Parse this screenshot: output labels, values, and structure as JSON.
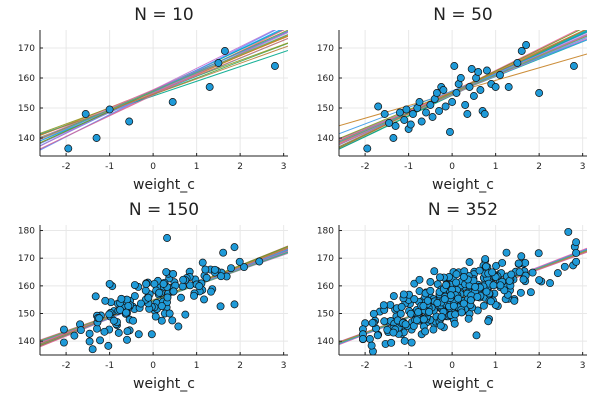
{
  "chart_data": [
    {
      "type": "scatter",
      "title": "N = 10",
      "xlabel": "weight_c",
      "ylabel": "",
      "xlim": [
        -2.6,
        3.1
      ],
      "ylim": [
        134,
        176
      ],
      "xticks": [
        -2,
        -1,
        0,
        1,
        2,
        3
      ],
      "yticks": [
        140,
        150,
        160,
        170
      ],
      "grid": true,
      "points": {
        "x": [
          -1.95,
          -1.55,
          -1.3,
          -1.0,
          -0.55,
          0.45,
          1.3,
          1.5,
          1.65,
          2.8
        ],
        "y": [
          136.5,
          148.0,
          140.0,
          149.5,
          145.5,
          152.0,
          157.0,
          165.0,
          169.0,
          164.0
        ]
      },
      "lines": [
        {
          "a": 155.6,
          "b": 7.0
        },
        {
          "a": 155.4,
          "b": 6.0
        },
        {
          "a": 154.5,
          "b": 5.5
        },
        {
          "a": 156.0,
          "b": 7.2
        },
        {
          "a": 154.8,
          "b": 6.3
        },
        {
          "a": 155.8,
          "b": 6.8
        },
        {
          "a": 154.7,
          "b": 7.1
        },
        {
          "a": 155.9,
          "b": 5.8
        },
        {
          "a": 154.0,
          "b": 4.9
        },
        {
          "a": 155.3,
          "b": 5.3
        },
        {
          "a": 154.6,
          "b": 6.0
        },
        {
          "a": 155.0,
          "b": 6.5
        },
        {
          "a": 155.2,
          "b": 7.4
        },
        {
          "a": 154.9,
          "b": 5.9
        },
        {
          "a": 156.1,
          "b": 6.2
        },
        {
          "a": 155.5,
          "b": 6.6
        },
        {
          "a": 154.3,
          "b": 6.9
        },
        {
          "a": 155.7,
          "b": 6.4
        },
        {
          "a": 154.5,
          "b": 5.2
        },
        {
          "a": 155.6,
          "b": 6.1
        }
      ]
    },
    {
      "type": "scatter",
      "title": "N = 50",
      "xlabel": "weight_c",
      "ylabel": "",
      "xlim": [
        -2.6,
        3.1
      ],
      "ylim": [
        134,
        176
      ],
      "xticks": [
        -2,
        -1,
        0,
        1,
        2,
        3
      ],
      "yticks": [
        140,
        150,
        160,
        170
      ],
      "grid": true,
      "points": {
        "x": [
          -1.95,
          -1.7,
          -1.55,
          -1.45,
          -1.35,
          -1.3,
          -1.2,
          -1.1,
          -1.05,
          -1.0,
          -0.95,
          -0.9,
          -0.8,
          -0.75,
          -0.7,
          -0.6,
          -0.5,
          -0.45,
          -0.4,
          -0.35,
          -0.3,
          -0.25,
          -0.2,
          -0.15,
          -0.05,
          0.0,
          0.05,
          0.1,
          0.15,
          0.2,
          0.3,
          0.35,
          0.4,
          0.45,
          0.5,
          0.55,
          0.6,
          0.65,
          0.7,
          0.75,
          0.8,
          0.9,
          1.0,
          1.1,
          1.3,
          1.5,
          1.6,
          1.7,
          2.0,
          2.8
        ],
        "y": [
          136.5,
          150.5,
          148.0,
          145.0,
          140.0,
          144.0,
          148.5,
          146.0,
          149.5,
          143.0,
          144.5,
          148.0,
          150.0,
          152.0,
          145.5,
          148.5,
          151.0,
          147.0,
          153.0,
          155.0,
          149.0,
          157.0,
          156.0,
          150.5,
          142.0,
          152.0,
          164.0,
          155.0,
          158.0,
          160.0,
          151.0,
          148.0,
          157.0,
          163.0,
          154.0,
          160.0,
          162.0,
          156.0,
          149.0,
          148.0,
          162.5,
          158.0,
          157.0,
          161.0,
          157.0,
          165.0,
          169.0,
          171.0,
          155.0,
          164.0
        ]
      },
      "lines": [
        {
          "a": 154.8,
          "b": 6.8
        },
        {
          "a": 155.2,
          "b": 6.2
        },
        {
          "a": 154.5,
          "b": 7.0
        },
        {
          "a": 155.0,
          "b": 6.5
        },
        {
          "a": 155.5,
          "b": 6.4
        },
        {
          "a": 154.7,
          "b": 5.8
        },
        {
          "a": 155.3,
          "b": 7.2
        },
        {
          "a": 155.0,
          "b": 4.2
        },
        {
          "a": 154.2,
          "b": 6.9
        },
        {
          "a": 155.4,
          "b": 6.0
        },
        {
          "a": 154.9,
          "b": 6.6
        },
        {
          "a": 155.1,
          "b": 6.3
        },
        {
          "a": 154.6,
          "b": 6.1
        },
        {
          "a": 155.6,
          "b": 6.7
        },
        {
          "a": 154.8,
          "b": 5.9
        },
        {
          "a": 155.2,
          "b": 7.1
        },
        {
          "a": 154.4,
          "b": 6.4
        },
        {
          "a": 155.7,
          "b": 5.5
        },
        {
          "a": 155.0,
          "b": 6.9
        },
        {
          "a": 154.7,
          "b": 6.2
        }
      ]
    },
    {
      "type": "scatter",
      "title": "N = 150",
      "xlabel": "weight_c",
      "ylabel": "",
      "xlim": [
        -2.6,
        3.1
      ],
      "ylim": [
        135,
        182
      ],
      "xticks": [
        -2,
        -1,
        0,
        1,
        2,
        3
      ],
      "yticks": [
        140,
        150,
        160,
        170,
        180
      ],
      "grid": true,
      "scatter_seed": 150,
      "scatter_count": 150,
      "lines": [
        {
          "a": 154.6,
          "b": 6.0
        },
        {
          "a": 154.8,
          "b": 5.8
        },
        {
          "a": 154.5,
          "b": 6.3
        },
        {
          "a": 154.7,
          "b": 5.5
        },
        {
          "a": 154.9,
          "b": 6.1
        },
        {
          "a": 154.4,
          "b": 5.9
        },
        {
          "a": 154.6,
          "b": 6.4
        },
        {
          "a": 154.8,
          "b": 5.6
        },
        {
          "a": 154.5,
          "b": 6.0
        },
        {
          "a": 154.7,
          "b": 6.2
        },
        {
          "a": 154.6,
          "b": 5.7
        },
        {
          "a": 154.9,
          "b": 6.0
        },
        {
          "a": 154.3,
          "b": 6.1
        },
        {
          "a": 154.7,
          "b": 5.9
        },
        {
          "a": 154.5,
          "b": 6.2
        },
        {
          "a": 154.8,
          "b": 6.3
        },
        {
          "a": 154.6,
          "b": 5.8
        },
        {
          "a": 154.4,
          "b": 6.0
        },
        {
          "a": 154.7,
          "b": 6.1
        },
        {
          "a": 154.6,
          "b": 5.6
        }
      ]
    },
    {
      "type": "scatter",
      "title": "N = 352",
      "xlabel": "weight_c",
      "ylabel": "",
      "xlim": [
        -2.6,
        3.1
      ],
      "ylim": [
        135,
        182
      ],
      "xticks": [
        -2,
        -1,
        0,
        1,
        2,
        3
      ],
      "yticks": [
        140,
        150,
        160,
        170,
        180
      ],
      "grid": true,
      "scatter_seed": 352,
      "scatter_count": 352,
      "lines": [
        {
          "a": 154.6,
          "b": 5.9
        },
        {
          "a": 154.7,
          "b": 5.8
        },
        {
          "a": 154.5,
          "b": 6.0
        },
        {
          "a": 154.6,
          "b": 5.7
        },
        {
          "a": 154.7,
          "b": 6.0
        },
        {
          "a": 154.5,
          "b": 5.9
        },
        {
          "a": 154.6,
          "b": 6.1
        },
        {
          "a": 154.7,
          "b": 5.8
        },
        {
          "a": 154.6,
          "b": 5.9
        },
        {
          "a": 154.5,
          "b": 5.8
        },
        {
          "a": 154.6,
          "b": 6.0
        },
        {
          "a": 154.7,
          "b": 5.9
        },
        {
          "a": 154.5,
          "b": 6.0
        },
        {
          "a": 154.6,
          "b": 5.8
        },
        {
          "a": 154.7,
          "b": 6.1
        },
        {
          "a": 154.6,
          "b": 5.9
        },
        {
          "a": 154.5,
          "b": 5.7
        },
        {
          "a": 154.6,
          "b": 6.0
        },
        {
          "a": 154.7,
          "b": 5.8
        },
        {
          "a": 154.6,
          "b": 5.9
        }
      ]
    }
  ],
  "colors": {
    "point_fill": "#1f9ad8",
    "point_stroke": "#111111",
    "grid": "#e8e8e8",
    "axis": "#222222",
    "lines": [
      "#009AFA",
      "#E36F47",
      "#3EA44E",
      "#C371D2",
      "#AC8E18",
      "#00AAAE",
      "#ED5E93",
      "#C68225",
      "#00A98D",
      "#8E971E",
      "#00A9CD",
      "#9B7FE9",
      "#618DF6",
      "#F16C64",
      "#DD6AB5",
      "#6A9A1F",
      "#D06B9C",
      "#3A9BE8",
      "#B87F3A",
      "#5FA870"
    ]
  }
}
